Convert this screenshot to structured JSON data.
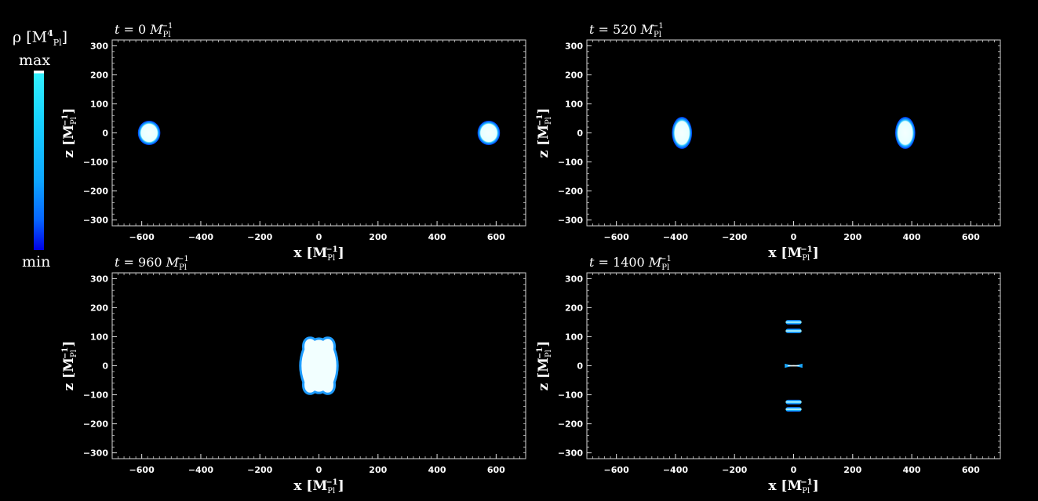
{
  "colorbar": {
    "title": "ρ [M",
    "title_sup": "4",
    "title_sub": "Pl",
    "title_end": "]",
    "max_label": "max",
    "min_label": "min",
    "colors": [
      "#ffffff",
      "#33f0ff",
      "#0ea6ff",
      "#0000e6"
    ]
  },
  "chart_data": [
    {
      "type": "heatmap",
      "title": "t = 0 M_Pl^-1",
      "time_value": "0",
      "xlabel": "x [M_Pl^-1]",
      "ylabel": "z [M_Pl^-1]",
      "xlim": [
        -700,
        700
      ],
      "ylim": [
        -320,
        320
      ],
      "xticks": [
        -600,
        -400,
        -200,
        0,
        200,
        400,
        600
      ],
      "yticks": [
        300,
        200,
        100,
        0,
        -100,
        -200,
        -300
      ],
      "show_xlabel": true,
      "blobs": [
        {
          "shape": "ellipse",
          "x": -575,
          "z": 0,
          "rx": 38,
          "rz": 42
        },
        {
          "shape": "ellipse",
          "x": 575,
          "z": 0,
          "rx": 38,
          "rz": 42
        }
      ]
    },
    {
      "type": "heatmap",
      "title": "t = 520 M_Pl^-1",
      "time_value": "520",
      "xlabel": "x [M_Pl^-1]",
      "ylabel": "z [M_Pl^-1]",
      "xlim": [
        -700,
        700
      ],
      "ylim": [
        -320,
        320
      ],
      "xticks": [
        -600,
        -400,
        -200,
        0,
        200,
        400,
        600
      ],
      "yticks": [
        300,
        200,
        100,
        0,
        -100,
        -200,
        -300
      ],
      "show_xlabel": true,
      "blobs": [
        {
          "shape": "ellipse",
          "x": -378,
          "z": 0,
          "rx": 34,
          "rz": 55
        },
        {
          "shape": "ellipse",
          "x": 378,
          "z": 0,
          "rx": 34,
          "rz": 55
        }
      ]
    },
    {
      "type": "heatmap",
      "title": "t = 960 M_Pl^-1",
      "time_value": "960",
      "xlabel": "x [M_Pl^-1]",
      "ylabel": "z [M_Pl^-1]",
      "xlim": [
        -700,
        700
      ],
      "ylim": [
        -320,
        320
      ],
      "xticks": [
        -600,
        -400,
        -200,
        0,
        200,
        400,
        600
      ],
      "yticks": [
        300,
        200,
        100,
        0,
        -100,
        -200,
        -300
      ],
      "show_xlabel": true,
      "blobs": [
        {
          "shape": "barrel",
          "x": 0,
          "z": 0,
          "rx": 70,
          "rz": 95
        }
      ]
    },
    {
      "type": "heatmap",
      "title": "t = 1400 M_Pl^-1",
      "time_value": "1400",
      "xlabel": "x [M_Pl^-1]",
      "ylabel": "z [M_Pl^-1]",
      "xlim": [
        -700,
        700
      ],
      "ylim": [
        -320,
        320
      ],
      "xticks": [
        -600,
        -400,
        -200,
        0,
        200,
        400,
        600
      ],
      "yticks": [
        300,
        200,
        100,
        0,
        -100,
        -200,
        -300
      ],
      "show_xlabel": true,
      "blobs": [
        {
          "shape": "band",
          "x": 0,
          "z": 150,
          "rx": 27,
          "rz": 8
        },
        {
          "shape": "band",
          "x": 0,
          "z": 120,
          "rx": 27,
          "rz": 8
        },
        {
          "shape": "bowtie",
          "x": 0,
          "z": 0,
          "rx": 30,
          "rz": 7
        },
        {
          "shape": "band",
          "x": 0,
          "z": -125,
          "rx": 27,
          "rz": 8
        },
        {
          "shape": "band",
          "x": 0,
          "z": -150,
          "rx": 27,
          "rz": 8
        }
      ]
    }
  ]
}
